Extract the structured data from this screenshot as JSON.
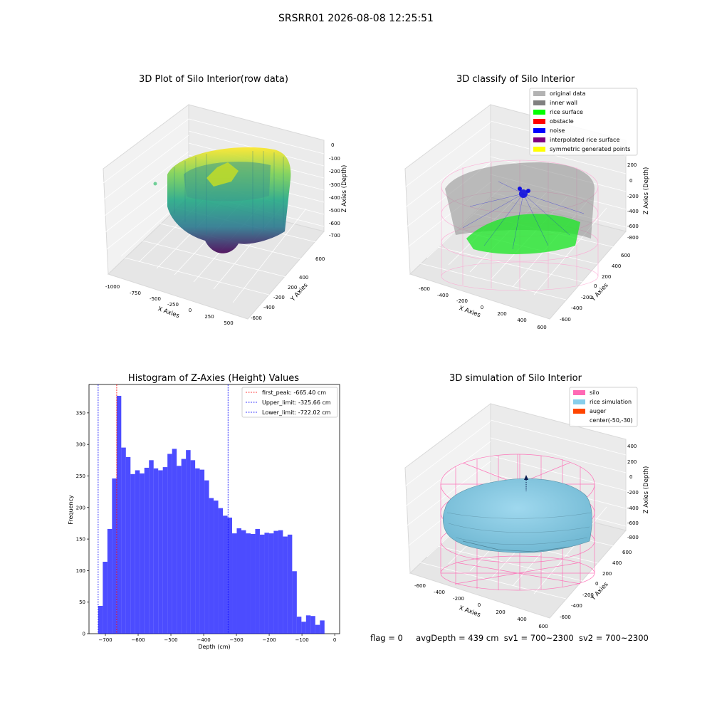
{
  "figure": {
    "title": "SRSRR01 2026-08-08 12:25:51",
    "footer": {
      "flag": "flag = 0",
      "avg_depth": "avgDepth = 439 cm",
      "sv1": "sv1 = 700~2300",
      "sv2": "sv2 = 700~2300"
    }
  },
  "chart_data": [
    {
      "type": "scatter",
      "title": "3D Plot of Silo Interior(row data)",
      "xlabel": "X Axies",
      "ylabel": "Y Axies",
      "zlabel": "Z Axies (Depth)",
      "x_ticks": [
        "-1000",
        "-750",
        "-500",
        "-250",
        "0",
        "250",
        "500"
      ],
      "y_ticks": [
        "600",
        "400",
        "200",
        "0",
        "-200",
        "-400",
        "-600"
      ],
      "z_ticks": [
        "0",
        "-100",
        "-200",
        "-300",
        "-400",
        "-500",
        "-600",
        "-700"
      ],
      "xlim": [
        -1100,
        600
      ],
      "ylim": [
        -650,
        650
      ],
      "zlim": [
        -780,
        20
      ],
      "colormap": "viridis",
      "grid": true
    },
    {
      "type": "scatter",
      "title": "3D classify of Silo Interior",
      "xlabel": "X Axies",
      "ylabel": "Y Axies",
      "zlabel": "Z Axies (Depth)",
      "x_ticks": [
        "-600",
        "-400",
        "-200",
        "0",
        "200",
        "400",
        "600"
      ],
      "y_ticks": [
        "600",
        "400",
        "200",
        "0",
        "-200",
        "-400",
        "-600"
      ],
      "z_ticks": [
        "200",
        "0",
        "-200",
        "-400",
        "-600",
        "-800"
      ],
      "legend_position": "top-right",
      "legend": [
        {
          "label": "original data",
          "color": "#b3b3b3"
        },
        {
          "label": "inner wall",
          "color": "#808080"
        },
        {
          "label": "rice surface",
          "color": "#00ff00"
        },
        {
          "label": "obstacle",
          "color": "#ff0000"
        },
        {
          "label": "noise",
          "color": "#0000ff"
        },
        {
          "label": "interpolated rice surface",
          "color": "#800080"
        },
        {
          "label": "symmetric generated points",
          "color": "#ffff00"
        }
      ],
      "grid": true
    },
    {
      "type": "bar",
      "title": "Histogram of Z-Axies (Height) Values",
      "xlabel": "Depth (cm)",
      "ylabel": "Frequency",
      "x_ticks": [
        -700,
        -600,
        -500,
        -400,
        -300,
        -200,
        -100,
        0
      ],
      "y_ticks": [
        0,
        50,
        100,
        150,
        200,
        250,
        300,
        350
      ],
      "xlim": [
        -750,
        15
      ],
      "ylim": [
        0,
        395
      ],
      "bin_start": -722.02,
      "bin_width": 14.1,
      "values": [
        44,
        114,
        166,
        246,
        377,
        295,
        280,
        253,
        259,
        254,
        263,
        275,
        262,
        259,
        264,
        285,
        293,
        266,
        277,
        291,
        275,
        262,
        260,
        243,
        215,
        211,
        199,
        187,
        184,
        159,
        167,
        164,
        159,
        158,
        166,
        157,
        160,
        159,
        163,
        164,
        154,
        157,
        99,
        27,
        19,
        29,
        28,
        14,
        21
      ],
      "bar_color": "#0000ff",
      "bar_opacity": 0.7,
      "lines": [
        {
          "label": "first_peak: -665.40 cm",
          "x": -665.4,
          "color": "#ff0000"
        },
        {
          "label": "Upper_limit: -325.66 cm",
          "x": -325.66,
          "color": "#0000ff"
        },
        {
          "label": "Lower_limit: -722.02 cm",
          "x": -722.02,
          "color": "#0000ff"
        }
      ],
      "legend_position": "top-right",
      "grid": false
    },
    {
      "type": "surface",
      "title": "3D simulation of Silo Interior",
      "xlabel": "X Axies",
      "ylabel": "Y Axies",
      "zlabel": "Z Axies (Depth)",
      "x_ticks": [
        "-600",
        "-400",
        "-200",
        "0",
        "200",
        "400",
        "600"
      ],
      "y_ticks": [
        "600",
        "400",
        "200",
        "0",
        "-200",
        "-400",
        "-600"
      ],
      "z_ticks": [
        "400",
        "200",
        "0",
        "-200",
        "-400",
        "-600",
        "-800"
      ],
      "legend_position": "top-right",
      "legend": [
        {
          "label": "silo",
          "color": "#ff69b4"
        },
        {
          "label": "rice simulation",
          "color": "#87ceeb"
        },
        {
          "label": "auger",
          "color": "#ff4500"
        },
        {
          "label": "center(-50,-30)",
          "color": ""
        }
      ],
      "grid": true
    }
  ]
}
